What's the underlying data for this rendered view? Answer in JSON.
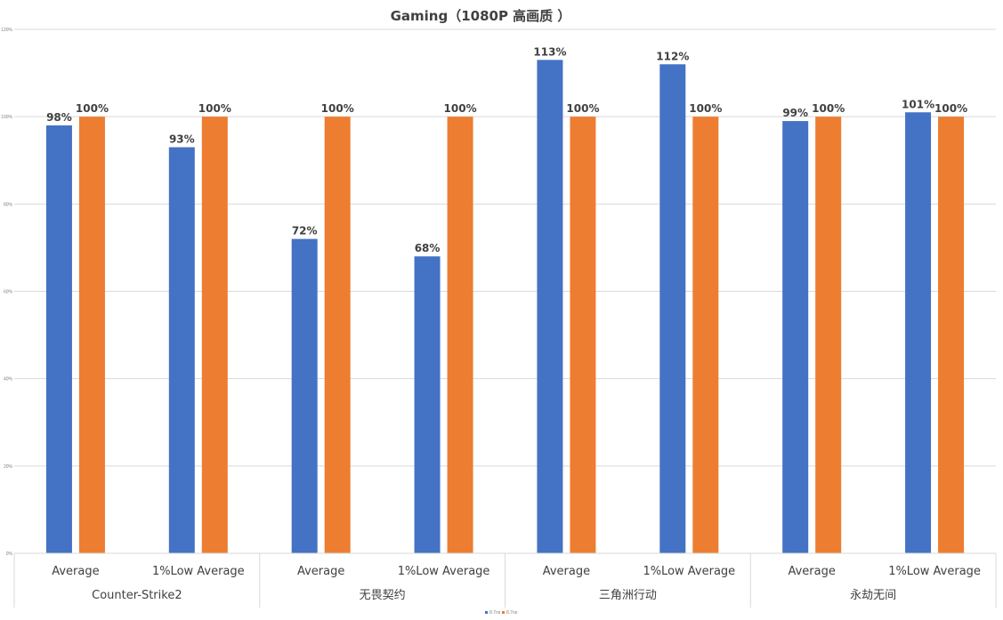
{
  "chart_data": {
    "type": "bar",
    "title": "Gaming（1080P 高画质 ）",
    "groups": [
      "Counter-Strike2",
      "无畏契约",
      "三角洲行动",
      "永劫无间"
    ],
    "categories": [
      "Average",
      "1%Low Average",
      "Average",
      "1%Low Average",
      "Average",
      "1%Low Average",
      "Average",
      "1%Low Average"
    ],
    "series": [
      {
        "name": "8.7ns",
        "color": "#4472C4",
        "values": [
          98,
          93,
          72,
          68,
          113,
          112,
          99,
          101
        ]
      },
      {
        "name": "8.7ns",
        "color": "#ED7D31",
        "values": [
          100,
          100,
          100,
          100,
          100,
          100,
          100,
          100
        ]
      }
    ],
    "value_suffix": "%",
    "ylim": [
      0,
      120
    ],
    "yticks": [
      "0%",
      "20%",
      "40%",
      "60%",
      "80%",
      "100%",
      "120%"
    ],
    "grid": true,
    "legend": "bottom"
  }
}
